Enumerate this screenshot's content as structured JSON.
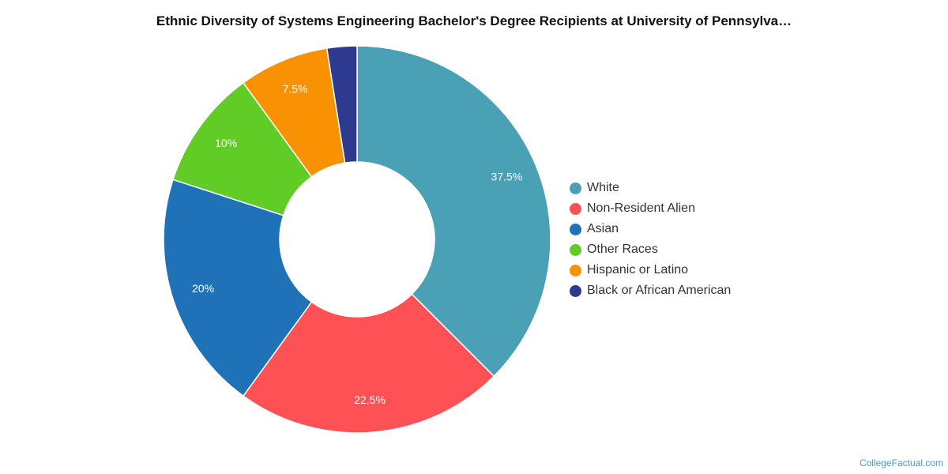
{
  "credit": "CollegeFactual.com",
  "chart_data": {
    "type": "pie",
    "donut": true,
    "title": "Ethnic Diversity of Systems Engineering Bachelor's Degree Recipients at University of Pennsylva…",
    "legend_position": "right",
    "slices": [
      {
        "label": "White",
        "value": 37.5,
        "display": "37.5%",
        "color": "#4aa0b4"
      },
      {
        "label": "Non-Resident Alien",
        "value": 22.5,
        "display": "22.5%",
        "color": "#fe5155"
      },
      {
        "label": "Asian",
        "value": 20,
        "display": "20%",
        "color": "#1f72b8"
      },
      {
        "label": "Other Races",
        "value": 10,
        "display": "10%",
        "color": "#61cc25"
      },
      {
        "label": "Hispanic or Latino",
        "value": 7.5,
        "display": "7.5%",
        "color": "#f99203"
      },
      {
        "label": "Black or African American",
        "value": 2.5,
        "display": "",
        "color": "#2d3a8f"
      }
    ]
  }
}
